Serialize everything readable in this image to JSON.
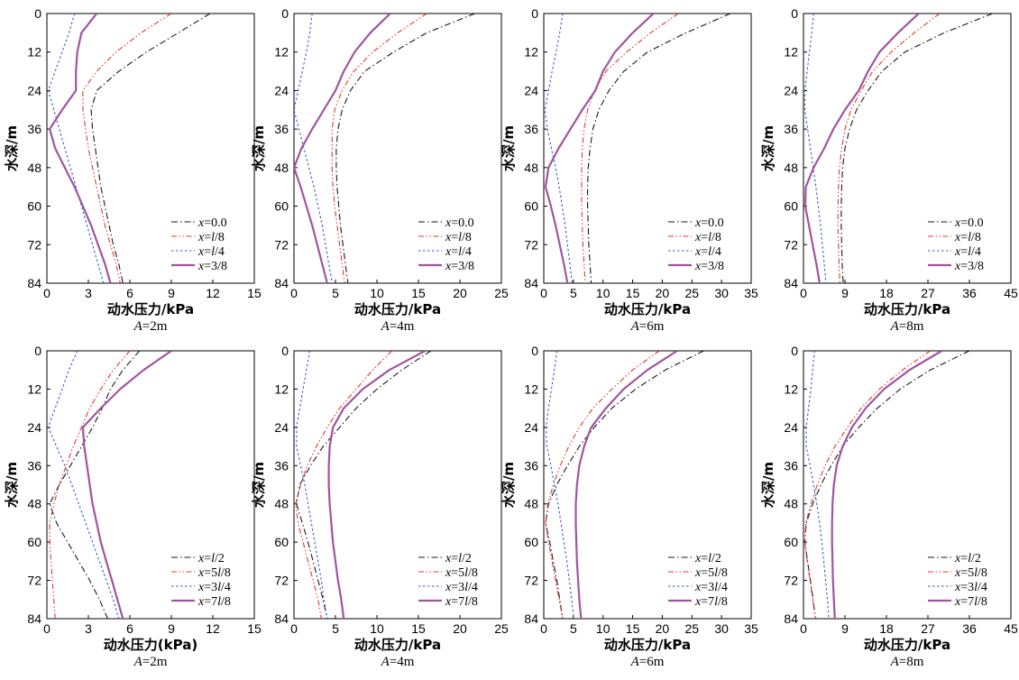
{
  "figure": {
    "panels": [
      {
        "caption": "A=2m",
        "xlabel": "动水压力/kPa"
      },
      {
        "caption": "A=4m",
        "xlabel": "动水压力/kPa"
      },
      {
        "caption": "A=6m",
        "xlabel": "动水压力/kPa"
      },
      {
        "caption": "A=8m",
        "xlabel": "动水压力/kPa"
      },
      {
        "caption": "A=2m",
        "xlabel": "动水压力(kPa)"
      },
      {
        "caption": "A=4m",
        "xlabel": "动水压力/kPa"
      },
      {
        "caption": "A=6m",
        "xlabel": "动水压力/kPa"
      },
      {
        "caption": "A=8m",
        "xlabel": "动水压力/kPa"
      }
    ]
  },
  "styles": {
    "series_colors": [
      "#1a1a1a",
      "#e8372a",
      "#2f5fc8",
      "#a0559f"
    ],
    "series_dash": [
      "dashdot",
      "dashdotdot",
      "dotted",
      "solid"
    ]
  },
  "chart_data": [
    {
      "type": "line",
      "title": "",
      "xlabel": "动水压力/kPa",
      "ylabel": "水深/m",
      "xlim": [
        0,
        15
      ],
      "ylim": [
        0,
        84
      ],
      "y_inverted": true,
      "xticks": [
        0,
        3,
        6,
        9,
        12,
        15
      ],
      "yticks": [
        0,
        12,
        24,
        36,
        48,
        60,
        72,
        84
      ],
      "legend_position": "bottom-right",
      "y": [
        0,
        6,
        12,
        18,
        24,
        30,
        36,
        42,
        48,
        54,
        60,
        66,
        72,
        78,
        84
      ],
      "series": [
        {
          "name": "x=0.0",
          "values": [
            11.8,
            9.5,
            7.2,
            5.2,
            3.6,
            3.2,
            3.3,
            3.5,
            3.7,
            3.9,
            4.2,
            4.5,
            4.8,
            5.2,
            5.5
          ]
        },
        {
          "name": "x=l/8",
          "values": [
            9.0,
            6.8,
            5.0,
            3.6,
            2.6,
            2.6,
            2.8,
            3.0,
            3.3,
            3.6,
            3.9,
            4.2,
            4.6,
            5.0,
            5.3
          ]
        },
        {
          "name": "x=l/4",
          "values": [
            2.0,
            1.6,
            1.1,
            0.6,
            0.1,
            0.5,
            0.9,
            1.3,
            1.7,
            2.1,
            2.5,
            2.9,
            3.3,
            3.7,
            4.1
          ]
        },
        {
          "name": "x=3/8",
          "values": [
            3.6,
            2.5,
            2.2,
            2.1,
            2.1,
            1.1,
            0.2,
            0.6,
            1.3,
            2.0,
            2.6,
            3.2,
            3.7,
            4.2,
            4.6
          ]
        }
      ]
    },
    {
      "type": "line",
      "title": "",
      "xlabel": "动水压力/kPa",
      "ylabel": "水深/m",
      "xlim": [
        0,
        25
      ],
      "ylim": [
        0,
        84
      ],
      "y_inverted": true,
      "xticks": [
        0,
        5,
        10,
        15,
        20,
        25
      ],
      "yticks": [
        0,
        12,
        24,
        36,
        48,
        60,
        72,
        84
      ],
      "legend_position": "bottom-right",
      "y": [
        0,
        6,
        12,
        18,
        24,
        30,
        36,
        42,
        48,
        54,
        60,
        66,
        72,
        78,
        84
      ],
      "series": [
        {
          "name": "x=0.0",
          "values": [
            21.8,
            16.0,
            12.0,
            8.5,
            6.8,
            5.8,
            5.3,
            5.1,
            5.1,
            5.2,
            5.4,
            5.6,
            5.9,
            6.2,
            6.5
          ]
        },
        {
          "name": "x=l/8",
          "values": [
            16.0,
            12.5,
            9.5,
            7.2,
            5.8,
            4.9,
            4.6,
            4.6,
            4.6,
            4.7,
            4.9,
            5.2,
            5.5,
            5.8,
            6.1
          ]
        },
        {
          "name": "x=l/4",
          "values": [
            2.2,
            1.9,
            1.5,
            1.0,
            0.5,
            0.0,
            0.6,
            1.2,
            1.8,
            2.4,
            2.9,
            3.4,
            3.8,
            4.2,
            4.6
          ]
        },
        {
          "name": "x=3/8",
          "values": [
            11.6,
            9.2,
            7.3,
            6.0,
            5.0,
            3.6,
            2.2,
            0.9,
            0.0,
            0.8,
            1.5,
            2.2,
            2.8,
            3.4,
            4.0
          ]
        }
      ]
    },
    {
      "type": "line",
      "title": "",
      "xlabel": "动水压力/kPa",
      "ylabel": "水深/m",
      "xlim": [
        0,
        35
      ],
      "ylim": [
        0,
        84
      ],
      "y_inverted": true,
      "xticks": [
        0,
        5,
        10,
        15,
        20,
        25,
        30,
        35
      ],
      "yticks": [
        0,
        12,
        24,
        36,
        48,
        60,
        72,
        84
      ],
      "legend_position": "bottom-right",
      "y": [
        0,
        6,
        12,
        18,
        24,
        30,
        36,
        42,
        48,
        54,
        60,
        66,
        72,
        78,
        84
      ],
      "series": [
        {
          "name": "x=0.0",
          "values": [
            31.5,
            24.0,
            17.5,
            13.5,
            11.0,
            9.3,
            8.3,
            7.8,
            7.5,
            7.4,
            7.4,
            7.5,
            7.6,
            7.8,
            8.0
          ]
        },
        {
          "name": "x=l/8",
          "values": [
            22.7,
            18.0,
            14.0,
            10.5,
            8.5,
            7.4,
            6.8,
            6.5,
            6.4,
            6.4,
            6.4,
            6.5,
            6.6,
            6.8,
            7.0
          ]
        },
        {
          "name": "x=l/4",
          "values": [
            3.2,
            2.7,
            2.1,
            1.4,
            0.8,
            0.2,
            0.6,
            1.3,
            2.0,
            2.6,
            3.1,
            3.6,
            4.0,
            4.4,
            4.8
          ]
        },
        {
          "name": "x=3/8",
          "values": [
            18.5,
            15.0,
            12.0,
            10.0,
            8.7,
            6.5,
            4.5,
            2.5,
            0.8,
            0.3,
            1.2,
            2.0,
            2.7,
            3.4,
            4.0
          ]
        }
      ]
    },
    {
      "type": "line",
      "title": "",
      "xlabel": "动水压力/kPa",
      "ylabel": "水深/m",
      "xlim": [
        0,
        45
      ],
      "ylim": [
        0,
        84
      ],
      "y_inverted": true,
      "xticks": [
        0,
        9,
        18,
        27,
        36,
        45
      ],
      "yticks": [
        0,
        12,
        24,
        36,
        48,
        60,
        72,
        84
      ],
      "legend_position": "bottom-right",
      "y": [
        0,
        6,
        12,
        18,
        24,
        30,
        36,
        42,
        48,
        54,
        60,
        66,
        72,
        78,
        84
      ],
      "series": [
        {
          "name": "x=0.0",
          "values": [
            41.0,
            30.5,
            22.0,
            17.0,
            14.0,
            11.5,
            10.0,
            9.0,
            8.5,
            8.3,
            8.2,
            8.2,
            8.3,
            8.4,
            8.6
          ]
        },
        {
          "name": "x=l/8",
          "values": [
            29.5,
            24.0,
            19.0,
            15.0,
            12.5,
            10.3,
            9.0,
            8.3,
            7.8,
            7.6,
            7.5,
            7.5,
            7.6,
            7.7,
            7.9
          ]
        },
        {
          "name": "x=l/4",
          "values": [
            2.2,
            1.8,
            1.3,
            0.8,
            0.3,
            0.3,
            0.9,
            1.5,
            2.1,
            2.7,
            3.2,
            3.7,
            4.1,
            4.5,
            4.9
          ]
        },
        {
          "name": "x=3/8",
          "values": [
            25.0,
            20.5,
            16.5,
            14.0,
            12.0,
            9.0,
            6.5,
            4.5,
            2.2,
            0.5,
            0.4,
            1.2,
            2.0,
            2.8,
            3.5
          ]
        }
      ]
    },
    {
      "type": "line",
      "title": "",
      "xlabel": "动水压力(kPa)",
      "ylabel": "水深/m",
      "xlim": [
        0,
        15
      ],
      "ylim": [
        0,
        84
      ],
      "y_inverted": true,
      "xticks": [
        0,
        3,
        6,
        9,
        12,
        15
      ],
      "yticks": [
        0,
        12,
        24,
        36,
        48,
        60,
        72,
        84
      ],
      "legend_position": "bottom-right",
      "y": [
        0,
        6,
        12,
        18,
        24,
        30,
        36,
        42,
        48,
        54,
        60,
        66,
        72,
        78,
        84
      ],
      "series": [
        {
          "name": "x=l/2",
          "values": [
            6.7,
            5.5,
            4.6,
            4.0,
            3.3,
            2.5,
            1.7,
            0.9,
            0.2,
            0.7,
            1.5,
            2.3,
            3.1,
            3.8,
            4.4
          ]
        },
        {
          "name": "x=5l/8",
          "values": [
            6.0,
            4.8,
            3.9,
            3.1,
            2.5,
            1.9,
            1.4,
            0.9,
            0.5,
            0.2,
            0.2,
            0.3,
            0.4,
            0.5,
            0.6
          ]
        },
        {
          "name": "x=3l/4",
          "values": [
            2.2,
            1.6,
            1.1,
            0.6,
            0.1,
            0.7,
            1.3,
            1.8,
            2.3,
            2.8,
            3.3,
            3.8,
            4.3,
            4.8,
            5.2
          ]
        },
        {
          "name": "x=7l/8",
          "values": [
            9.0,
            7.0,
            5.3,
            3.9,
            2.6,
            2.7,
            2.9,
            3.1,
            3.3,
            3.6,
            3.9,
            4.3,
            4.7,
            5.1,
            5.5
          ]
        }
      ]
    },
    {
      "type": "line",
      "title": "",
      "xlabel": "动水压力/kPa",
      "ylabel": "水深/m",
      "xlim": [
        0,
        25
      ],
      "ylim": [
        0,
        84
      ],
      "y_inverted": true,
      "xticks": [
        0,
        5,
        10,
        15,
        20,
        25
      ],
      "yticks": [
        0,
        12,
        24,
        36,
        48,
        60,
        72,
        84
      ],
      "legend_position": "bottom-right",
      "y": [
        0,
        6,
        12,
        18,
        24,
        30,
        36,
        42,
        48,
        54,
        60,
        66,
        72,
        78,
        84
      ],
      "series": [
        {
          "name": "x=l/2",
          "values": [
            16.5,
            13.0,
            10.0,
            7.5,
            5.5,
            3.5,
            2.0,
            0.7,
            0.3,
            1.0,
            1.7,
            2.3,
            2.9,
            3.5,
            4.0
          ]
        },
        {
          "name": "x=5l/8",
          "values": [
            11.8,
            9.5,
            7.5,
            5.5,
            4.0,
            2.7,
            1.6,
            0.8,
            0.2,
            0.5,
            1.1,
            1.7,
            2.3,
            2.9,
            3.3
          ]
        },
        {
          "name": "x=3l/4",
          "values": [
            1.9,
            1.5,
            1.1,
            0.7,
            0.3,
            0.3,
            0.8,
            1.3,
            1.7,
            2.1,
            2.5,
            2.9,
            3.3,
            3.6,
            4.0
          ]
        },
        {
          "name": "x=7l/8",
          "values": [
            15.8,
            11.5,
            8.3,
            6.0,
            4.7,
            4.3,
            4.2,
            4.2,
            4.3,
            4.5,
            4.7,
            5.0,
            5.3,
            5.7,
            6.0
          ]
        }
      ]
    },
    {
      "type": "line",
      "title": "",
      "xlabel": "动水压力/kPa",
      "ylabel": "水深/m",
      "xlim": [
        0,
        35
      ],
      "ylim": [
        0,
        84
      ],
      "y_inverted": true,
      "xticks": [
        0,
        5,
        10,
        15,
        20,
        25,
        30,
        35
      ],
      "yticks": [
        0,
        12,
        24,
        36,
        48,
        60,
        72,
        84
      ],
      "legend_position": "bottom-right",
      "y": [
        0,
        6,
        12,
        18,
        24,
        30,
        36,
        42,
        48,
        54,
        60,
        66,
        72,
        78,
        84
      ],
      "series": [
        {
          "name": "x=l/2",
          "values": [
            27.0,
            20.5,
            15.5,
            11.5,
            8.5,
            6.0,
            4.0,
            2.2,
            0.8,
            0.3,
            1.0,
            1.6,
            2.2,
            2.7,
            3.2
          ]
        },
        {
          "name": "x=5l/8",
          "values": [
            19.5,
            15.0,
            11.5,
            8.3,
            6.0,
            4.2,
            2.8,
            1.6,
            0.7,
            0.3,
            0.8,
            1.4,
            2.0,
            2.6,
            3.2
          ]
        },
        {
          "name": "x=3l/4",
          "values": [
            2.2,
            1.8,
            1.3,
            0.8,
            0.4,
            0.5,
            1.2,
            1.8,
            2.4,
            2.9,
            3.4,
            3.9,
            4.3,
            4.7,
            5.1
          ]
        },
        {
          "name": "x=7l/8",
          "values": [
            22.5,
            17.5,
            13.5,
            10.5,
            8.0,
            6.8,
            6.0,
            5.6,
            5.4,
            5.4,
            5.5,
            5.6,
            5.8,
            6.0,
            6.3
          ]
        }
      ]
    },
    {
      "type": "line",
      "title": "",
      "xlabel": "动水压力/kPa",
      "ylabel": "水深/m",
      "xlim": [
        0,
        45
      ],
      "ylim": [
        0,
        84
      ],
      "y_inverted": true,
      "xticks": [
        0,
        9,
        18,
        27,
        36,
        45
      ],
      "yticks": [
        0,
        12,
        24,
        36,
        48,
        60,
        72,
        84
      ],
      "legend_position": "bottom-right",
      "y": [
        0,
        6,
        12,
        18,
        24,
        30,
        36,
        42,
        48,
        54,
        60,
        66,
        72,
        78,
        84
      ],
      "series": [
        {
          "name": "x=l/2",
          "values": [
            36.0,
            27.5,
            21.0,
            16.0,
            12.0,
            8.5,
            6.0,
            3.8,
            2.0,
            0.6,
            0.3,
            0.9,
            1.5,
            2.1,
            2.6
          ]
        },
        {
          "name": "x=5l/8",
          "values": [
            27.5,
            21.5,
            16.5,
            12.5,
            9.5,
            6.8,
            4.7,
            3.0,
            1.6,
            0.5,
            0.3,
            0.8,
            1.4,
            2.0,
            2.6
          ]
        },
        {
          "name": "x=3l/4",
          "values": [
            2.4,
            2.0,
            1.6,
            1.1,
            0.6,
            0.6,
            1.4,
            2.2,
            2.9,
            3.5,
            4.0,
            4.4,
            4.8,
            5.2,
            5.5
          ]
        },
        {
          "name": "x=7l/8",
          "values": [
            30.0,
            23.0,
            17.5,
            13.5,
            10.5,
            8.5,
            7.2,
            6.6,
            6.3,
            6.2,
            6.2,
            6.3,
            6.4,
            6.6,
            6.8
          ]
        }
      ]
    }
  ]
}
